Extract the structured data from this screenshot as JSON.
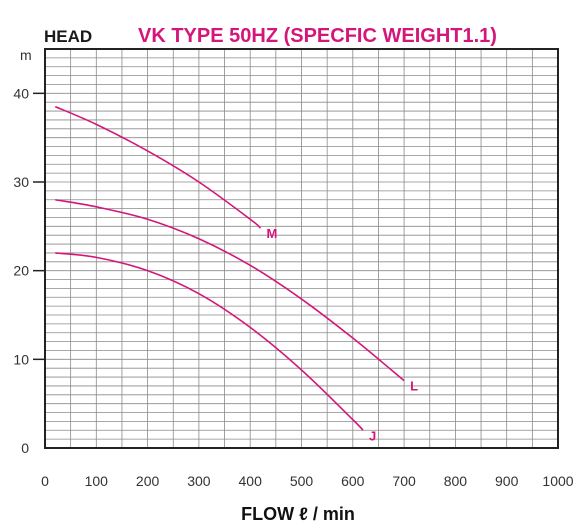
{
  "header": {
    "left_label": "HEAD",
    "title": "VK TYPE 50HZ (SPECFIC WEIGHT1.1)"
  },
  "colors": {
    "title": "#d4167a",
    "curve": "#d4167a",
    "grid": "#8a8a8a",
    "frame": "#222222"
  },
  "chart_data": {
    "type": "line",
    "title": "VK TYPE 50HZ (SPECFIC WEIGHT1.1)",
    "xlabel": "FLOW ℓ / min",
    "ylabel": "HEAD",
    "y_unit": "m",
    "xlim": [
      0,
      1000
    ],
    "ylim": [
      0,
      45
    ],
    "x_ticks": [
      0,
      100,
      200,
      300,
      400,
      500,
      600,
      700,
      800,
      900,
      1000
    ],
    "y_ticks": [
      0,
      10,
      20,
      30,
      40
    ],
    "grid": true,
    "series": [
      {
        "name": "M",
        "x": [
          20,
          100,
          200,
          300,
          400,
          420
        ],
        "y": [
          38.5,
          36.5,
          33.5,
          30.0,
          25.8,
          24.8
        ]
      },
      {
        "name": "L",
        "x": [
          20,
          100,
          200,
          300,
          400,
          500,
          600,
          700
        ],
        "y": [
          28,
          27.2,
          25.8,
          23.6,
          20.6,
          16.8,
          12.4,
          7.6
        ]
      },
      {
        "name": "J",
        "x": [
          20,
          100,
          200,
          300,
          400,
          500,
          600,
          620
        ],
        "y": [
          22,
          21.5,
          20.0,
          17.4,
          13.6,
          8.8,
          3.2,
          2.0
        ]
      }
    ]
  }
}
